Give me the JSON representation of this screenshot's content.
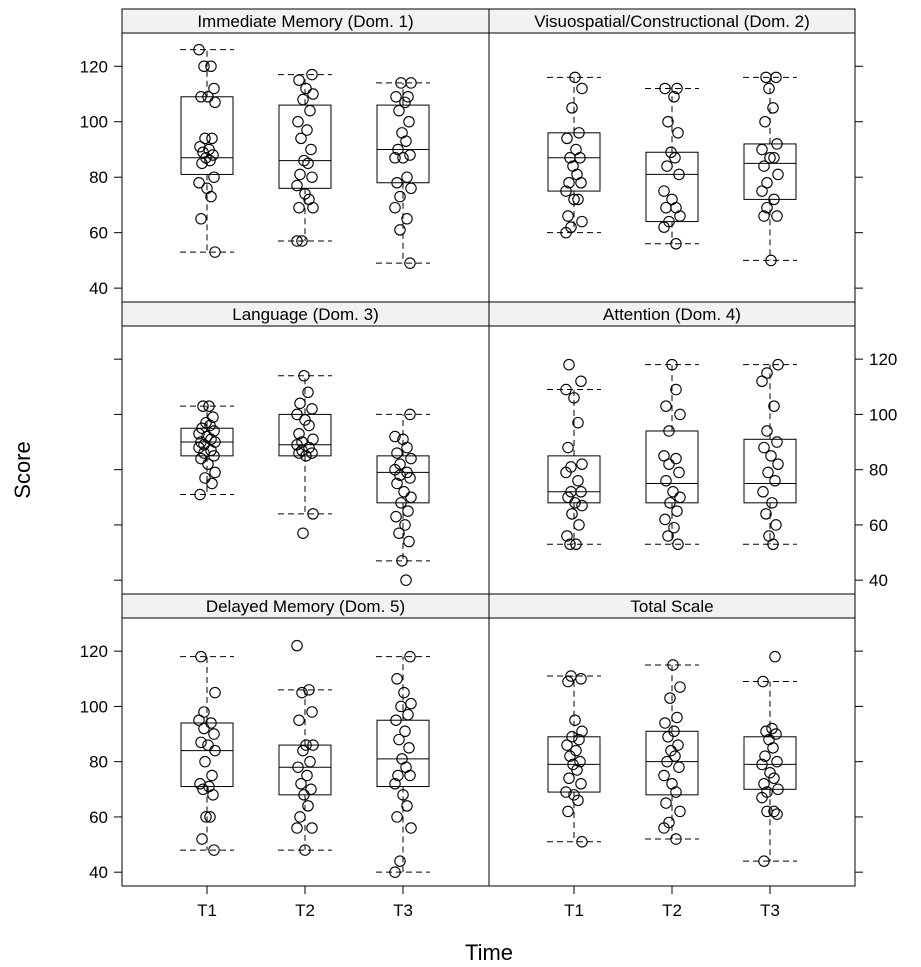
{
  "chart_data": {
    "type": "boxplot",
    "xlabel": "Time",
    "ylabel": "Score",
    "categories": [
      "T1",
      "T2",
      "T3"
    ],
    "ylim": [
      35,
      132
    ],
    "y_ticks": [
      40,
      60,
      80,
      100,
      120
    ],
    "panels": [
      {
        "title": "Immediate Memory (Dom. 1)",
        "boxes": [
          {
            "category": "T1",
            "whisker_low": 53,
            "q1": 81,
            "median": 87,
            "q3": 109,
            "whisker_high": 126,
            "points": [
              126,
              120,
              120,
              112,
              109,
              109,
              107,
              94,
              94,
              91,
              90,
              89,
              88,
              87,
              86,
              85,
              80,
              78,
              76,
              73,
              65,
              53
            ]
          },
          {
            "category": "T2",
            "whisker_low": 57,
            "q1": 76,
            "median": 86,
            "q3": 106,
            "whisker_high": 117,
            "points": [
              117,
              115,
              112,
              110,
              108,
              104,
              100,
              97,
              94,
              90,
              86,
              85,
              81,
              80,
              77,
              74,
              72,
              69,
              69,
              57,
              57
            ]
          },
          {
            "category": "T3",
            "whisker_low": 49,
            "q1": 78,
            "median": 90,
            "q3": 106,
            "whisker_high": 114,
            "points": [
              114,
              114,
              109,
              109,
              107,
              104,
              100,
              96,
              93,
              90,
              88,
              87,
              87,
              80,
              78,
              76,
              73,
              69,
              65,
              61,
              49
            ]
          }
        ]
      },
      {
        "title": "Visuospatial/Constructional (Dom. 2)",
        "boxes": [
          {
            "category": "T1",
            "whisker_low": 60,
            "q1": 75,
            "median": 87,
            "q3": 96,
            "whisker_high": 116,
            "points": [
              116,
              112,
              105,
              96,
              94,
              90,
              87,
              87,
              84,
              81,
              78,
              78,
              75,
              72,
              72,
              66,
              64,
              62,
              60
            ]
          },
          {
            "category": "T2",
            "whisker_low": 56,
            "q1": 64,
            "median": 81,
            "q3": 89,
            "whisker_high": 112,
            "points": [
              112,
              112,
              109,
              100,
              96,
              89,
              87,
              84,
              81,
              75,
              72,
              69,
              69,
              66,
              64,
              62,
              56
            ]
          },
          {
            "category": "T3",
            "whisker_low": 50,
            "q1": 72,
            "median": 85,
            "q3": 92,
            "whisker_high": 116,
            "points": [
              116,
              116,
              112,
              105,
              100,
              92,
              90,
              87,
              87,
              84,
              81,
              78,
              75,
              72,
              69,
              66,
              66,
              50
            ]
          }
        ]
      },
      {
        "title": "Language (Dom. 3)",
        "boxes": [
          {
            "category": "T1",
            "whisker_low": 71,
            "q1": 85,
            "median": 90,
            "q3": 95,
            "whisker_high": 103,
            "points": [
              103,
              103,
              99,
              97,
              96,
              95,
              94,
              93,
              92,
              91,
              90,
              90,
              89,
              88,
              87,
              86,
              85,
              84,
              82,
              79,
              77,
              75,
              71
            ]
          },
          {
            "category": "T2",
            "whisker_low": 64,
            "q1": 85,
            "median": 89,
            "q3": 100,
            "whisker_high": 114,
            "points": [
              114,
              108,
              104,
              102,
              100,
              98,
              96,
              93,
              91,
              90,
              89,
              88,
              87,
              86,
              86,
              85,
              64,
              57
            ]
          },
          {
            "category": "T3",
            "whisker_low": 47,
            "q1": 68,
            "median": 79,
            "q3": 85,
            "whisker_high": 100,
            "points": [
              100,
              92,
              91,
              88,
              86,
              84,
              82,
              80,
              79,
              78,
              77,
              75,
              72,
              70,
              68,
              65,
              63,
              60,
              57,
              54,
              47,
              40
            ]
          }
        ]
      },
      {
        "title": "Attention (Dom. 4)",
        "boxes": [
          {
            "category": "T1",
            "whisker_low": 53,
            "q1": 68,
            "median": 72,
            "q3": 85,
            "whisker_high": 109,
            "points": [
              118,
              112,
              109,
              106,
              97,
              88,
              82,
              81,
              79,
              76,
              72,
              72,
              70,
              68,
              67,
              64,
              60,
              56,
              53,
              53
            ]
          },
          {
            "category": "T2",
            "whisker_low": 53,
            "q1": 68,
            "median": 75,
            "q3": 94,
            "whisker_high": 118,
            "points": [
              118,
              109,
              103,
              100,
              94,
              85,
              84,
              82,
              79,
              76,
              72,
              70,
              68,
              65,
              62,
              59,
              56,
              53
            ]
          },
          {
            "category": "T3",
            "whisker_low": 53,
            "q1": 68,
            "median": 75,
            "q3": 91,
            "whisker_high": 118,
            "points": [
              118,
              115,
              112,
              103,
              94,
              90,
              88,
              85,
              82,
              79,
              76,
              72,
              68,
              64,
              60,
              56,
              53
            ]
          }
        ]
      },
      {
        "title": "Delayed Memory (Dom. 5)",
        "boxes": [
          {
            "category": "T1",
            "whisker_low": 48,
            "q1": 71,
            "median": 84,
            "q3": 94,
            "whisker_high": 118,
            "points": [
              118,
              105,
              98,
              95,
              94,
              92,
              90,
              87,
              86,
              84,
              80,
              75,
              72,
              71,
              70,
              68,
              60,
              60,
              52,
              48
            ]
          },
          {
            "category": "T2",
            "whisker_low": 48,
            "q1": 68,
            "median": 78,
            "q3": 86,
            "whisker_high": 106,
            "points": [
              122,
              106,
              105,
              98,
              95,
              86,
              86,
              84,
              80,
              78,
              75,
              72,
              70,
              68,
              64,
              60,
              56,
              56,
              48
            ]
          },
          {
            "category": "T3",
            "whisker_low": 40,
            "q1": 71,
            "median": 81,
            "q3": 95,
            "whisker_high": 118,
            "points": [
              118,
              110,
              105,
              101,
              100,
              97,
              95,
              91,
              88,
              85,
              81,
              78,
              75,
              75,
              72,
              68,
              64,
              60,
              56,
              44,
              40
            ]
          }
        ]
      },
      {
        "title": "Total Scale",
        "boxes": [
          {
            "category": "T1",
            "whisker_low": 51,
            "q1": 69,
            "median": 79,
            "q3": 89,
            "whisker_high": 111,
            "points": [
              111,
              110,
              109,
              95,
              91,
              89,
              88,
              86,
              84,
              82,
              80,
              79,
              77,
              74,
              72,
              69,
              68,
              66,
              62,
              51
            ]
          },
          {
            "category": "T2",
            "whisker_low": 52,
            "q1": 68,
            "median": 80,
            "q3": 91,
            "whisker_high": 115,
            "points": [
              115,
              107,
              103,
              96,
              94,
              91,
              89,
              86,
              84,
              82,
              80,
              78,
              75,
              72,
              69,
              65,
              62,
              58,
              56,
              52
            ]
          },
          {
            "category": "T3",
            "whisker_low": 44,
            "q1": 70,
            "median": 79,
            "q3": 89,
            "whisker_high": 109,
            "points": [
              118,
              109,
              92,
              91,
              90,
              88,
              85,
              82,
              80,
              79,
              76,
              74,
              72,
              70,
              69,
              67,
              62,
              62,
              61,
              44
            ]
          }
        ]
      }
    ]
  }
}
